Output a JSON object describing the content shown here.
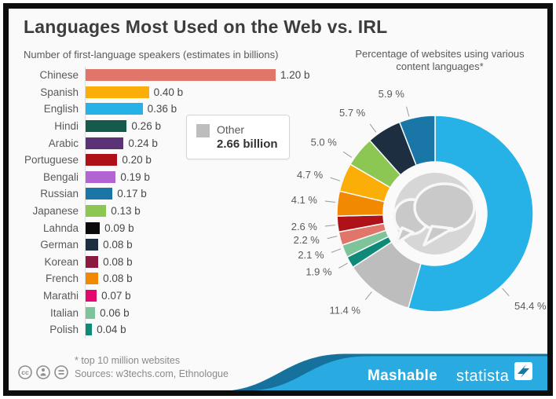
{
  "title": "Languages Most Used on the Web vs. IRL",
  "footer": {
    "footnote": "* top 10 million websites",
    "sources": "Sources: w3techs.com, Ethnologue"
  },
  "brand": {
    "mashable": "Mashable",
    "statista": "statista"
  },
  "icons": {
    "cc": "cc-license-icon",
    "by": "cc-attribution-icon",
    "nd": "cc-no-derivatives-icon",
    "center": "speech-bubbles-icon"
  },
  "chart_data": [
    {
      "type": "bar",
      "orientation": "horizontal",
      "title": "Number of first-language speakers (estimates in billions)",
      "max": 1.2,
      "categories": [
        "Chinese",
        "Spanish",
        "English",
        "Hindi",
        "Arabic",
        "Portuguese",
        "Bengali",
        "Russian",
        "Japanese",
        "Lahnda",
        "German",
        "Korean",
        "French",
        "Marathi",
        "Italian",
        "Polish"
      ],
      "values": [
        1.2,
        0.4,
        0.36,
        0.26,
        0.24,
        0.2,
        0.19,
        0.17,
        0.13,
        0.09,
        0.08,
        0.08,
        0.08,
        0.07,
        0.06,
        0.04
      ],
      "value_labels": [
        "1.20 b",
        "0.40 b",
        "0.36 b",
        "0.26 b",
        "0.24 b",
        "0.20 b",
        "0.19 b",
        "0.17 b",
        "0.13 b",
        "0.09 b",
        "0.08 b",
        "0.08 b",
        "0.08 b",
        "0.07 b",
        "0.06 b",
        "0.04 b"
      ],
      "colors": [
        "#E0756A",
        "#FBAE08",
        "#27B2E7",
        "#155A4A",
        "#5C3277",
        "#AE1117",
        "#B264D2",
        "#1B76A8",
        "#8CC653",
        "#0A0A0A",
        "#1C2E40",
        "#8A1A40",
        "#F18A00",
        "#E5086E",
        "#7EC49A",
        "#0F8A78"
      ],
      "legend": {
        "label": "Other",
        "value": "2.66 billion",
        "color": "#BDBDBD"
      }
    },
    {
      "type": "pie",
      "style": "donut",
      "title": "Percentage of websites using various content languages*",
      "unit": "%",
      "start_angle": 0,
      "direction": "clockwise",
      "values": [
        54.4,
        11.4,
        1.9,
        2.1,
        2.2,
        2.6,
        4.1,
        4.7,
        5.0,
        5.7,
        5.9
      ],
      "labels": [
        "54.4 %",
        "11.4 %",
        "1.9 %",
        "2.1 %",
        "2.2 %",
        "2.6 %",
        "4.1 %",
        "4.7 %",
        "5.0 %",
        "5.7 %",
        "5.9 %"
      ],
      "colors": [
        "#27B2E7",
        "#BDBDBD",
        "#0F8A78",
        "#7EC49A",
        "#E0756A",
        "#AE1117",
        "#F18A00",
        "#FBAE08",
        "#8CC653",
        "#1C2E40",
        "#1B76A8"
      ],
      "label_angles": [
        138,
        219,
        240.5,
        249.5,
        257,
        263.5,
        276.5,
        289,
        304,
        324,
        345
      ]
    }
  ]
}
